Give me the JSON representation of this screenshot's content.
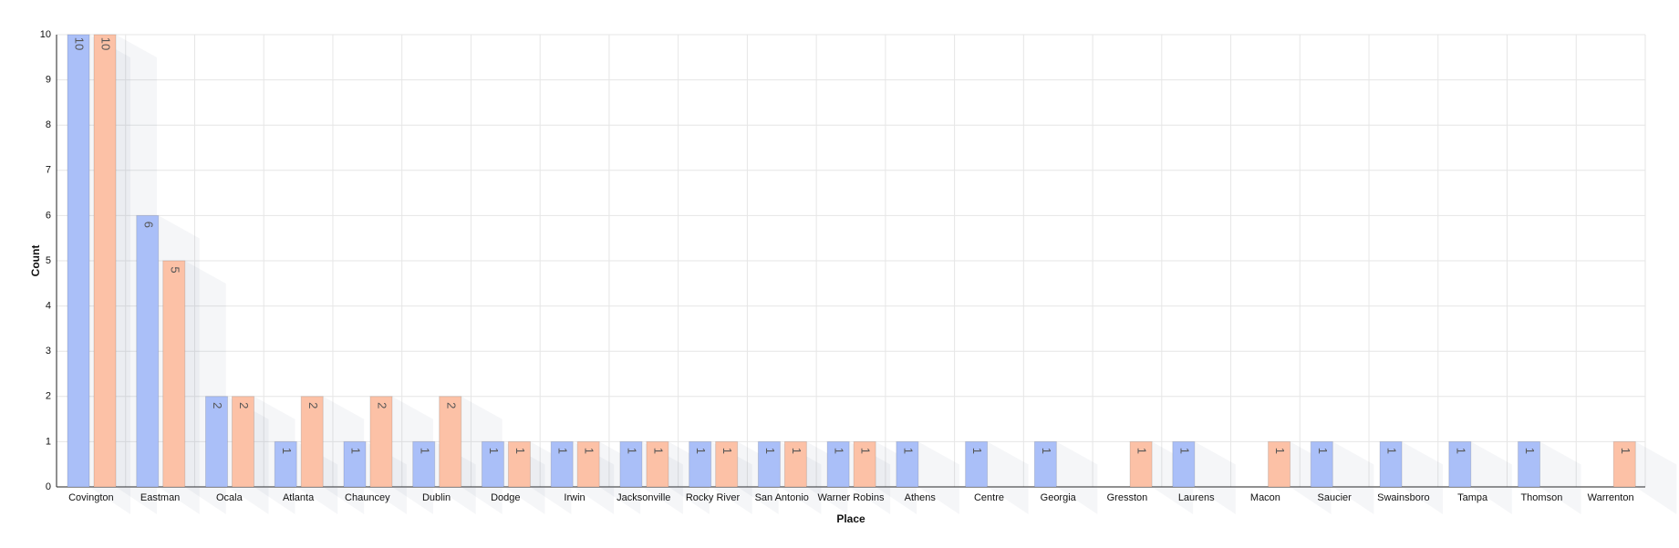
{
  "chart_data": {
    "type": "bar",
    "x_label": "Place",
    "y_label": "Count",
    "categories": [
      "Covington",
      "Eastman",
      "Ocala",
      "Atlanta",
      "Chauncey",
      "Dublin",
      "Dodge",
      "Irwin",
      "Jacksonville",
      "Rocky River",
      "San Antonio",
      "Warner Robins",
      "Athens",
      "Centre",
      "Georgia",
      "Gresston",
      "Laurens",
      "Macon",
      "Saucier",
      "Swainsboro",
      "Tampa",
      "Thomson",
      "Warrenton"
    ],
    "series": [
      {
        "color": "#aabff8",
        "values": [
          10,
          6,
          2,
          1,
          1,
          1,
          1,
          1,
          1,
          1,
          1,
          1,
          1,
          1,
          1,
          null,
          1,
          null,
          1,
          1,
          1,
          1,
          null
        ]
      },
      {
        "color": "#fcc1a6",
        "values": [
          10,
          5,
          2,
          2,
          2,
          2,
          1,
          1,
          1,
          1,
          1,
          1,
          null,
          null,
          null,
          1,
          null,
          1,
          null,
          null,
          null,
          null,
          1
        ]
      }
    ],
    "ylim": [
      0,
      10
    ],
    "yticks": [
      0,
      1,
      2,
      3,
      4,
      5,
      6,
      7,
      8,
      9,
      10
    ],
    "grid": true
  }
}
